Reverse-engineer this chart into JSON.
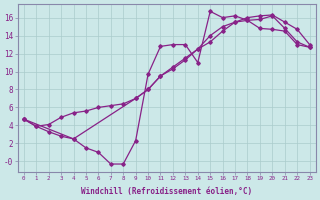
{
  "xlabel": "Windchill (Refroidissement éolien,°C)",
  "ylabel": "",
  "xlim": [
    -0.5,
    23.5
  ],
  "ylim": [
    -1.2,
    17.5
  ],
  "xticks": [
    0,
    1,
    2,
    3,
    4,
    5,
    6,
    7,
    8,
    9,
    10,
    11,
    12,
    13,
    14,
    15,
    16,
    17,
    18,
    19,
    20,
    21,
    22,
    23
  ],
  "yticks": [
    0,
    2,
    4,
    6,
    8,
    10,
    12,
    14,
    16
  ],
  "ytick_labels": [
    "-0",
    "2",
    "4",
    "6",
    "8",
    "10",
    "12",
    "14",
    "16"
  ],
  "bg_color": "#cce8e8",
  "line_color": "#882288",
  "grid_color": "#aacccc",
  "line1_x": [
    0,
    1,
    2,
    3,
    4,
    5,
    6,
    7,
    8,
    9,
    10,
    11,
    12,
    13,
    14,
    15,
    16,
    17,
    18,
    19,
    20,
    21,
    22,
    23
  ],
  "line1_y": [
    4.7,
    3.9,
    3.3,
    2.8,
    2.5,
    1.5,
    1.0,
    -0.3,
    -0.3,
    2.3,
    9.7,
    12.8,
    13.0,
    13.0,
    11.0,
    16.7,
    16.0,
    16.2,
    15.7,
    14.8,
    14.7,
    14.5,
    13.0,
    12.7
  ],
  "line2_x": [
    0,
    1,
    2,
    3,
    4,
    5,
    6,
    7,
    8,
    9,
    10,
    11,
    12,
    13,
    14,
    15,
    16,
    17,
    18,
    19,
    20,
    21,
    22,
    23
  ],
  "line2_y": [
    4.7,
    3.9,
    4.1,
    4.9,
    5.4,
    5.6,
    6.0,
    6.2,
    6.4,
    7.0,
    8.0,
    9.5,
    10.5,
    11.5,
    12.5,
    14.0,
    15.0,
    15.5,
    15.7,
    15.8,
    16.2,
    14.8,
    13.3,
    12.7
  ],
  "line3_x": [
    0,
    4,
    9,
    10,
    11,
    12,
    13,
    14,
    15,
    16,
    17,
    18,
    19,
    20,
    21,
    22,
    23
  ],
  "line3_y": [
    4.7,
    2.5,
    7.0,
    8.0,
    9.5,
    10.3,
    11.3,
    12.5,
    13.3,
    14.5,
    15.5,
    16.0,
    16.2,
    16.3,
    15.5,
    14.7,
    13.0
  ]
}
